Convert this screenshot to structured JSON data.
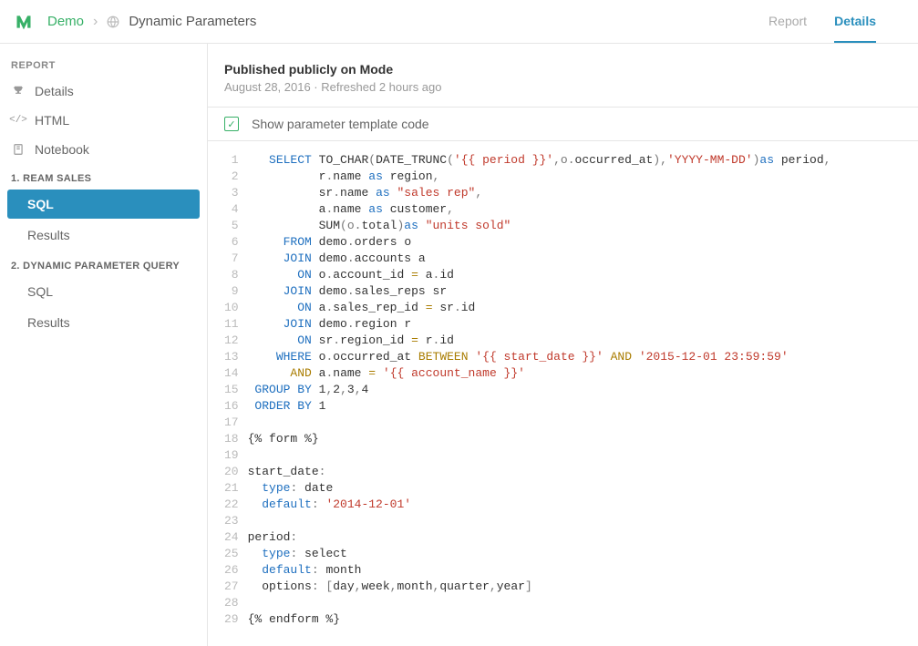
{
  "breadcrumb": {
    "demo": "Demo",
    "title": "Dynamic Parameters"
  },
  "toptabs": {
    "report": "Report",
    "details": "Details"
  },
  "sidebar": {
    "header": "REPORT",
    "items": [
      {
        "label": "Details"
      },
      {
        "label": "HTML"
      },
      {
        "label": "Notebook"
      }
    ],
    "groups": [
      {
        "title": "1. REAM SALES",
        "subs": [
          "SQL",
          "Results"
        ],
        "active": 0
      },
      {
        "title": "2. DYNAMIC PARAMETER QUERY",
        "subs": [
          "SQL",
          "Results"
        ],
        "active": -1
      }
    ]
  },
  "pub": {
    "title": "Published publicly on Mode",
    "meta": "August 28, 2016 · Refreshed 2 hours ago"
  },
  "checkbox": {
    "label": "Show parameter template code",
    "checked": true
  },
  "code": {
    "lines": [
      [
        [
          "sp",
          "   "
        ],
        [
          "kw",
          "SELECT"
        ],
        [
          "sp",
          " "
        ],
        [
          "ident",
          "TO_CHAR"
        ],
        [
          "punc",
          "("
        ],
        [
          "ident",
          "DATE_TRUNC"
        ],
        [
          "punc",
          "("
        ],
        [
          "str",
          "'{{ period }}'"
        ],
        [
          "punc",
          ",o."
        ],
        [
          "ident",
          "occurred_at"
        ],
        [
          "punc",
          ")"
        ],
        [
          "punc",
          ","
        ],
        [
          "str",
          "'YYYY-MM-DD'"
        ],
        [
          "punc",
          ")"
        ],
        [
          "kw",
          "as"
        ],
        [
          "sp",
          " "
        ],
        [
          "ident",
          "period"
        ],
        [
          "punc",
          ","
        ]
      ],
      [
        [
          "sp",
          "          "
        ],
        [
          "ident",
          "r"
        ],
        [
          "punc",
          "."
        ],
        [
          "ident",
          "name"
        ],
        [
          "sp",
          " "
        ],
        [
          "kw",
          "as"
        ],
        [
          "sp",
          " "
        ],
        [
          "ident",
          "region"
        ],
        [
          "punc",
          ","
        ]
      ],
      [
        [
          "sp",
          "          "
        ],
        [
          "ident",
          "sr"
        ],
        [
          "punc",
          "."
        ],
        [
          "ident",
          "name"
        ],
        [
          "sp",
          " "
        ],
        [
          "kw",
          "as"
        ],
        [
          "sp",
          " "
        ],
        [
          "str",
          "\"sales rep\""
        ],
        [
          "punc",
          ","
        ]
      ],
      [
        [
          "sp",
          "          "
        ],
        [
          "ident",
          "a"
        ],
        [
          "punc",
          "."
        ],
        [
          "ident",
          "name"
        ],
        [
          "sp",
          " "
        ],
        [
          "kw",
          "as"
        ],
        [
          "sp",
          " "
        ],
        [
          "ident",
          "customer"
        ],
        [
          "punc",
          ","
        ]
      ],
      [
        [
          "sp",
          "          "
        ],
        [
          "ident",
          "SUM"
        ],
        [
          "punc",
          "(o."
        ],
        [
          "ident",
          "total"
        ],
        [
          "punc",
          ")"
        ],
        [
          "kw",
          "as"
        ],
        [
          "sp",
          " "
        ],
        [
          "str",
          "\"units sold\""
        ]
      ],
      [
        [
          "sp",
          "     "
        ],
        [
          "kw",
          "FROM"
        ],
        [
          "sp",
          " "
        ],
        [
          "ident",
          "demo"
        ],
        [
          "punc",
          "."
        ],
        [
          "ident",
          "orders"
        ],
        [
          "sp",
          " "
        ],
        [
          "ident",
          "o"
        ]
      ],
      [
        [
          "sp",
          "     "
        ],
        [
          "kw",
          "JOIN"
        ],
        [
          "sp",
          " "
        ],
        [
          "ident",
          "demo"
        ],
        [
          "punc",
          "."
        ],
        [
          "ident",
          "accounts"
        ],
        [
          "sp",
          " "
        ],
        [
          "ident",
          "a"
        ]
      ],
      [
        [
          "sp",
          "       "
        ],
        [
          "kw",
          "ON"
        ],
        [
          "sp",
          " "
        ],
        [
          "ident",
          "o"
        ],
        [
          "punc",
          "."
        ],
        [
          "ident",
          "account_id"
        ],
        [
          "sp",
          " "
        ],
        [
          "op",
          "="
        ],
        [
          "sp",
          " "
        ],
        [
          "ident",
          "a"
        ],
        [
          "punc",
          "."
        ],
        [
          "ident",
          "id"
        ]
      ],
      [
        [
          "sp",
          "     "
        ],
        [
          "kw",
          "JOIN"
        ],
        [
          "sp",
          " "
        ],
        [
          "ident",
          "demo"
        ],
        [
          "punc",
          "."
        ],
        [
          "ident",
          "sales_reps"
        ],
        [
          "sp",
          " "
        ],
        [
          "ident",
          "sr"
        ]
      ],
      [
        [
          "sp",
          "       "
        ],
        [
          "kw",
          "ON"
        ],
        [
          "sp",
          " "
        ],
        [
          "ident",
          "a"
        ],
        [
          "punc",
          "."
        ],
        [
          "ident",
          "sales_rep_id"
        ],
        [
          "sp",
          " "
        ],
        [
          "op",
          "="
        ],
        [
          "sp",
          " "
        ],
        [
          "ident",
          "sr"
        ],
        [
          "punc",
          "."
        ],
        [
          "ident",
          "id"
        ]
      ],
      [
        [
          "sp",
          "     "
        ],
        [
          "kw",
          "JOIN"
        ],
        [
          "sp",
          " "
        ],
        [
          "ident",
          "demo"
        ],
        [
          "punc",
          "."
        ],
        [
          "ident",
          "region"
        ],
        [
          "sp",
          " "
        ],
        [
          "ident",
          "r"
        ]
      ],
      [
        [
          "sp",
          "       "
        ],
        [
          "kw",
          "ON"
        ],
        [
          "sp",
          " "
        ],
        [
          "ident",
          "sr"
        ],
        [
          "punc",
          "."
        ],
        [
          "ident",
          "region_id"
        ],
        [
          "sp",
          " "
        ],
        [
          "op",
          "="
        ],
        [
          "sp",
          " "
        ],
        [
          "ident",
          "r"
        ],
        [
          "punc",
          "."
        ],
        [
          "ident",
          "id"
        ]
      ],
      [
        [
          "sp",
          "    "
        ],
        [
          "kw",
          "WHERE"
        ],
        [
          "sp",
          " "
        ],
        [
          "ident",
          "o"
        ],
        [
          "punc",
          "."
        ],
        [
          "ident",
          "occurred_at"
        ],
        [
          "sp",
          " "
        ],
        [
          "op",
          "BETWEEN"
        ],
        [
          "sp",
          " "
        ],
        [
          "str",
          "'{{ start_date }}'"
        ],
        [
          "sp",
          " "
        ],
        [
          "op",
          "AND"
        ],
        [
          "sp",
          " "
        ],
        [
          "str",
          "'2015-12-01 23:59:59'"
        ]
      ],
      [
        [
          "sp",
          "      "
        ],
        [
          "op",
          "AND"
        ],
        [
          "sp",
          " "
        ],
        [
          "ident",
          "a"
        ],
        [
          "punc",
          "."
        ],
        [
          "ident",
          "name"
        ],
        [
          "sp",
          " "
        ],
        [
          "op",
          "="
        ],
        [
          "sp",
          " "
        ],
        [
          "str",
          "'{{ account_name }}'"
        ]
      ],
      [
        [
          "sp",
          " "
        ],
        [
          "kw",
          "GROUP BY"
        ],
        [
          "sp",
          " "
        ],
        [
          "ident",
          "1"
        ],
        [
          "punc",
          ","
        ],
        [
          "ident",
          "2"
        ],
        [
          "punc",
          ","
        ],
        [
          "ident",
          "3"
        ],
        [
          "punc",
          ","
        ],
        [
          "ident",
          "4"
        ]
      ],
      [
        [
          "sp",
          " "
        ],
        [
          "kw",
          "ORDER BY"
        ],
        [
          "sp",
          " "
        ],
        [
          "ident",
          "1"
        ]
      ],
      [],
      [
        [
          "ident",
          "{% form %}"
        ]
      ],
      [],
      [
        [
          "ident",
          "start_date"
        ],
        [
          "punc",
          ":"
        ]
      ],
      [
        [
          "sp",
          "  "
        ],
        [
          "kw",
          "type"
        ],
        [
          "punc",
          ": "
        ],
        [
          "ident",
          "date"
        ]
      ],
      [
        [
          "sp",
          "  "
        ],
        [
          "kw",
          "default"
        ],
        [
          "punc",
          ": "
        ],
        [
          "str",
          "'2014-12-01'"
        ]
      ],
      [],
      [
        [
          "ident",
          "period"
        ],
        [
          "punc",
          ":"
        ]
      ],
      [
        [
          "sp",
          "  "
        ],
        [
          "kw",
          "type"
        ],
        [
          "punc",
          ": "
        ],
        [
          "ident",
          "select"
        ]
      ],
      [
        [
          "sp",
          "  "
        ],
        [
          "kw",
          "default"
        ],
        [
          "punc",
          ": "
        ],
        [
          "ident",
          "month"
        ]
      ],
      [
        [
          "sp",
          "  "
        ],
        [
          "ident",
          "options"
        ],
        [
          "punc",
          ": ["
        ],
        [
          "ident",
          "day"
        ],
        [
          "punc",
          ","
        ],
        [
          "ident",
          "week"
        ],
        [
          "punc",
          ","
        ],
        [
          "ident",
          "month"
        ],
        [
          "punc",
          ","
        ],
        [
          "ident",
          "quarter"
        ],
        [
          "punc",
          ","
        ],
        [
          "ident",
          "year"
        ],
        [
          "punc",
          "]"
        ]
      ],
      [],
      [
        [
          "ident",
          "{% endform %}"
        ]
      ]
    ]
  },
  "colors": {
    "accent_green": "#37b067",
    "accent_blue": "#2a8fbd",
    "keyword": "#1e6fbf",
    "string": "#c0392b",
    "operator": "#a97c00",
    "muted": "#999"
  }
}
